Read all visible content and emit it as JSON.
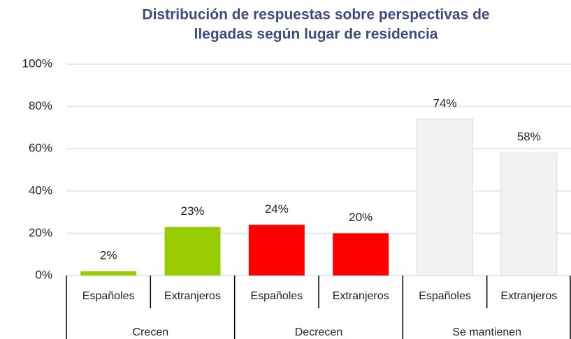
{
  "chart_data": {
    "type": "bar",
    "title": [
      "Distribución de respuestas sobre perspectivas de",
      "llegadas según lugar de residencia"
    ],
    "groups": [
      {
        "name": "Crecen",
        "categories": [
          "Españoles",
          "Extranjeros"
        ],
        "values": [
          2,
          23
        ],
        "value_labels": [
          "2%",
          "23%"
        ],
        "color": "#99cc00"
      },
      {
        "name": "Decrecen",
        "categories": [
          "Españoles",
          "Extranjeros"
        ],
        "values": [
          24,
          20
        ],
        "value_labels": [
          "24%",
          "20%"
        ],
        "color": "#ff0000"
      },
      {
        "name": "Se mantienen",
        "categories": [
          "Españoles",
          "Extranjeros"
        ],
        "values": [
          74,
          58
        ],
        "value_labels": [
          "74%",
          "58%"
        ],
        "color": "#f2f2f2"
      }
    ],
    "ylim": [
      0,
      100
    ],
    "yticks": [
      {
        "value": 0,
        "label": "0%"
      },
      {
        "value": 20,
        "label": "20%"
      },
      {
        "value": 40,
        "label": "40%"
      },
      {
        "value": 60,
        "label": "60%"
      },
      {
        "value": 80,
        "label": "80%"
      },
      {
        "value": 100,
        "label": "100%"
      }
    ],
    "grid": true
  }
}
